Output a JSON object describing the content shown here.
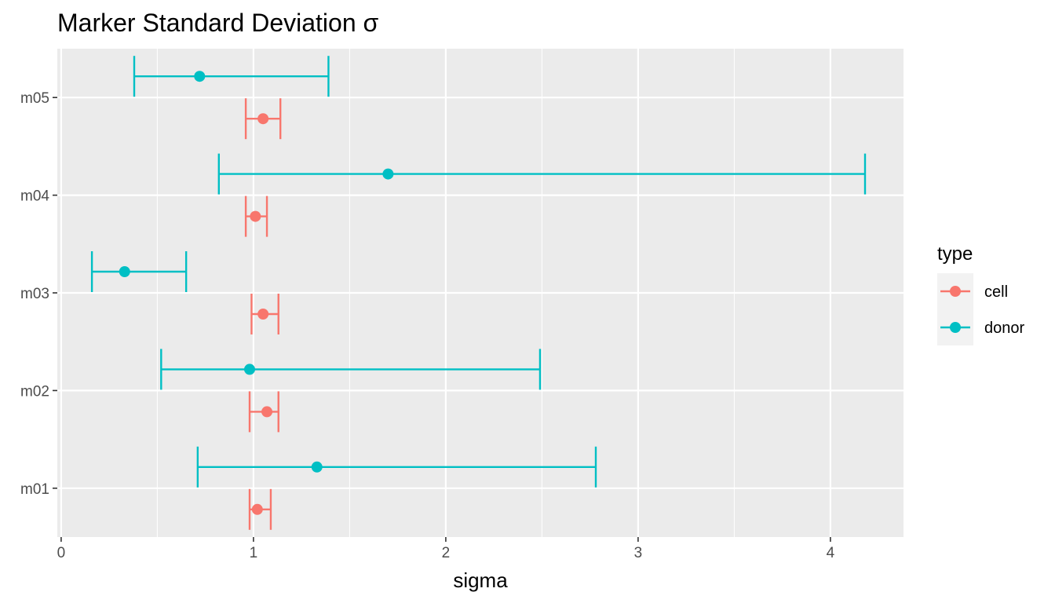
{
  "chart_data": {
    "type": "scatter",
    "title": "Marker Standard Deviation σ",
    "xlabel": "sigma",
    "ylabel": "",
    "xlim": [
      -0.02,
      4.38
    ],
    "x_ticks": [
      0,
      1,
      2,
      3,
      4
    ],
    "categories": [
      "m01",
      "m02",
      "m03",
      "m04",
      "m05"
    ],
    "grid": true,
    "legend": {
      "title": "type",
      "position": "right"
    },
    "series": [
      {
        "name": "cell",
        "color": "#F8766D",
        "points": [
          {
            "category": "m01",
            "x": 1.02,
            "lower": 0.98,
            "upper": 1.09
          },
          {
            "category": "m02",
            "x": 1.07,
            "lower": 0.98,
            "upper": 1.13
          },
          {
            "category": "m03",
            "x": 1.05,
            "lower": 0.99,
            "upper": 1.13
          },
          {
            "category": "m04",
            "x": 1.01,
            "lower": 0.96,
            "upper": 1.07
          },
          {
            "category": "m05",
            "x": 1.05,
            "lower": 0.96,
            "upper": 1.14
          }
        ]
      },
      {
        "name": "donor",
        "color": "#00BFC4",
        "points": [
          {
            "category": "m01",
            "x": 1.33,
            "lower": 0.71,
            "upper": 2.78
          },
          {
            "category": "m02",
            "x": 0.98,
            "lower": 0.52,
            "upper": 2.49
          },
          {
            "category": "m03",
            "x": 0.33,
            "lower": 0.16,
            "upper": 0.65
          },
          {
            "category": "m04",
            "x": 1.7,
            "lower": 0.82,
            "upper": 4.18
          },
          {
            "category": "m05",
            "x": 0.72,
            "lower": 0.38,
            "upper": 1.39
          }
        ]
      }
    ]
  }
}
